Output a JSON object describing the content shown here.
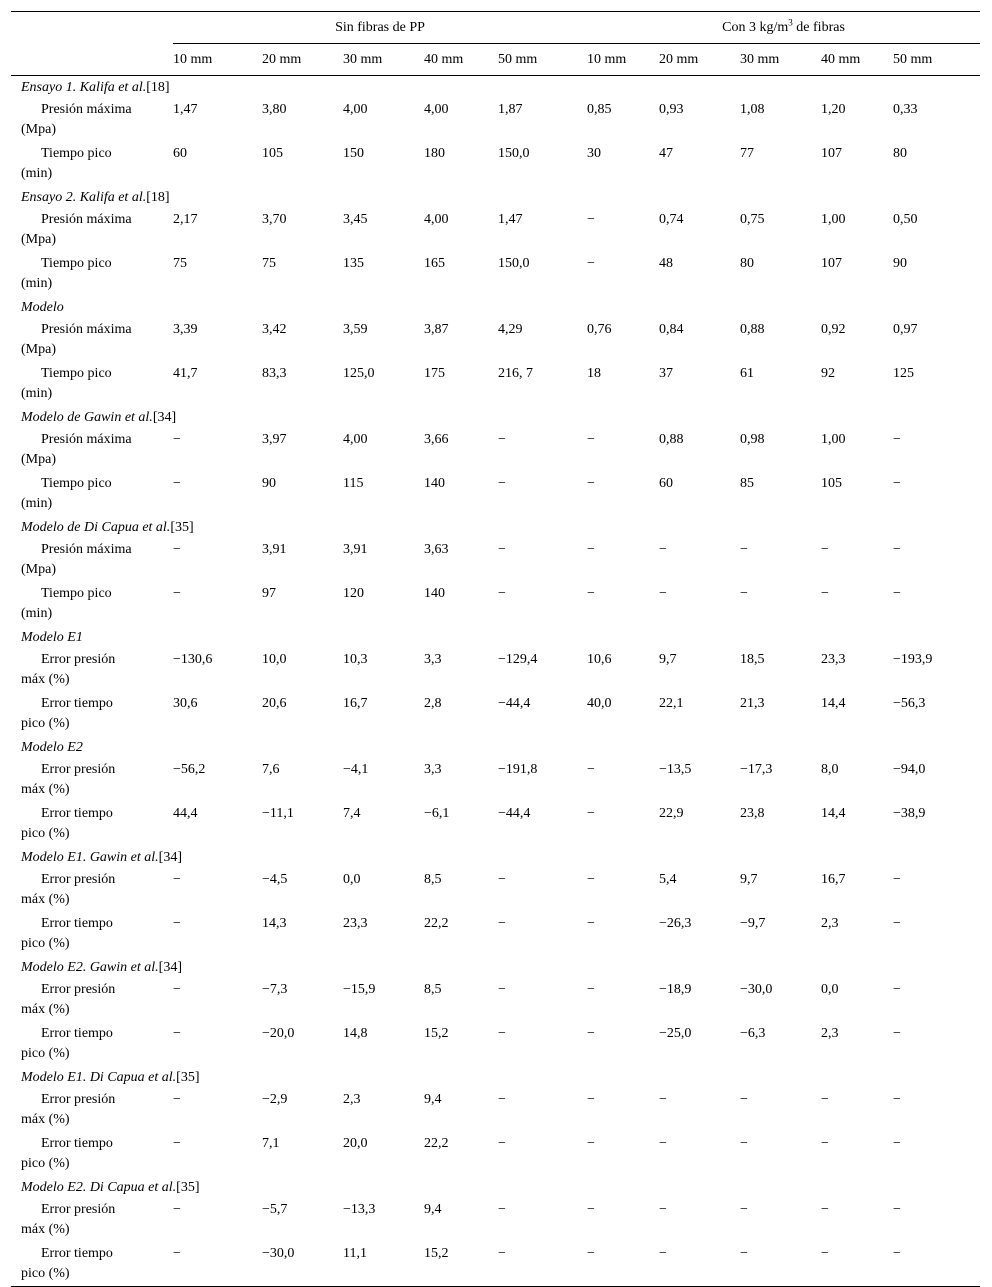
{
  "header": {
    "group_left": "Sin fibras de PP",
    "group_right_prefix": "Con 3 kg/m",
    "group_right_sup": "3",
    "group_right_suffix": " de fibras",
    "columns": [
      "10 mm",
      "20 mm",
      "30 mm",
      "40 mm",
      "50 mm",
      "10 mm",
      "20 mm",
      "30 mm",
      "40 mm",
      "50 mm"
    ]
  },
  "sections": [
    {
      "title": "Ensayo 1. Kalifa et al.",
      "ref": "[18]",
      "rows": [
        {
          "l1": "Presión máxima",
          "l2": "(Mpa)",
          "values": [
            "1,47",
            "3,80",
            "4,00",
            "4,00",
            "1,87",
            "0,85",
            "0,93",
            "1,08",
            "1,20",
            "0,33"
          ]
        },
        {
          "l1": "Tiempo pico",
          "l2": "(min)",
          "values": [
            "60",
            "105",
            "150",
            "180",
            "150,0",
            "30",
            "47",
            "77",
            "107",
            "80"
          ]
        }
      ]
    },
    {
      "title": "Ensayo 2. Kalifa et al.",
      "ref": "[18]",
      "rows": [
        {
          "l1": "Presión máxima",
          "l2": "(Mpa)",
          "values": [
            "2,17",
            "3,70",
            "3,45",
            "4,00",
            "1,47",
            "−",
            "0,74",
            "0,75",
            "1,00",
            "0,50"
          ]
        },
        {
          "l1": "Tiempo pico",
          "l2": "(min)",
          "values": [
            "75",
            "75",
            "135",
            "165",
            "150,0",
            "−",
            "48",
            "80",
            "107",
            "90"
          ]
        }
      ]
    },
    {
      "title": "Modelo",
      "ref": "",
      "rows": [
        {
          "l1": "Presión máxima",
          "l2": "(Mpa)",
          "values": [
            "3,39",
            "3,42",
            "3,59",
            "3,87",
            "4,29",
            "0,76",
            "0,84",
            "0,88",
            "0,92",
            "0,97"
          ]
        },
        {
          "l1": "Tiempo pico",
          "l2": "(min)",
          "values": [
            "41,7",
            "83,3",
            "125,0",
            "175",
            "216, 7",
            "18",
            "37",
            "61",
            "92",
            "125"
          ]
        }
      ]
    },
    {
      "title": "Modelo de Gawin et al.",
      "ref": "[34]",
      "rows": [
        {
          "l1": "Presión máxima",
          "l2": "(Mpa)",
          "values": [
            "−",
            "3,97",
            "4,00",
            "3,66",
            "−",
            "−",
            "0,88",
            "0,98",
            "1,00",
            "−"
          ]
        },
        {
          "l1": "Tiempo pico",
          "l2": "(min)",
          "values": [
            "−",
            "90",
            "115",
            "140",
            "−",
            "−",
            "60",
            "85",
            "105",
            "−"
          ]
        }
      ]
    },
    {
      "title": "Modelo de Di Capua et al.",
      "ref": "[35]",
      "rows": [
        {
          "l1": "Presión máxima",
          "l2": "(Mpa)",
          "values": [
            "−",
            "3,91",
            "3,91",
            "3,63",
            "−",
            "−",
            "−",
            "−",
            "−",
            "−"
          ]
        },
        {
          "l1": "Tiempo pico",
          "l2": "(min)",
          "values": [
            "−",
            "97",
            "120",
            "140",
            "−",
            "−",
            "−",
            "−",
            "−",
            "−"
          ]
        }
      ]
    },
    {
      "title": "Modelo E1",
      "ref": "",
      "rows": [
        {
          "l1": "Error presión",
          "l2": "máx (%)",
          "values": [
            "−130,6",
            "10,0",
            "10,3",
            "3,3",
            "−129,4",
            "10,6",
            "9,7",
            "18,5",
            "23,3",
            "−193,9"
          ]
        },
        {
          "l1": "Error tiempo",
          "l2": "pico (%)",
          "values": [
            "30,6",
            "20,6",
            "16,7",
            "2,8",
            "−44,4",
            "40,0",
            "22,1",
            "21,3",
            "14,4",
            "−56,3"
          ]
        }
      ]
    },
    {
      "title": "Modelo E2",
      "ref": "",
      "rows": [
        {
          "l1": "Error presión",
          "l2": "máx (%)",
          "values": [
            "−56,2",
            "7,6",
            "−4,1",
            "3,3",
            "−191,8",
            "−",
            "−13,5",
            "−17,3",
            "8,0",
            "−94,0"
          ]
        },
        {
          "l1": "Error tiempo",
          "l2": "pico (%)",
          "values": [
            "44,4",
            "−11,1",
            "7,4",
            "−6,1",
            "−44,4",
            "−",
            "22,9",
            "23,8",
            "14,4",
            "−38,9"
          ]
        }
      ]
    },
    {
      "title": "Modelo E1. Gawin et al.",
      "ref": "[34]",
      "rows": [
        {
          "l1": "Error presión",
          "l2": "máx (%)",
          "values": [
            "−",
            "−4,5",
            "0,0",
            "8,5",
            "−",
            "−",
            "5,4",
            "9,7",
            "16,7",
            "−"
          ]
        },
        {
          "l1": "Error tiempo",
          "l2": "pico (%)",
          "values": [
            "−",
            "14,3",
            "23,3",
            "22,2",
            "−",
            "−",
            "−26,3",
            "−9,7",
            "2,3",
            "−"
          ]
        }
      ]
    },
    {
      "title": "Modelo E2. Gawin et al.",
      "ref": "[34]",
      "rows": [
        {
          "l1": "Error presión",
          "l2": "máx (%)",
          "values": [
            "−",
            "−7,3",
            "−15,9",
            "8,5",
            "−",
            "−",
            "−18,9",
            "−30,0",
            "0,0",
            "−"
          ]
        },
        {
          "l1": "Error tiempo",
          "l2": "pico (%)",
          "values": [
            "−",
            "−20,0",
            "14,8",
            "15,2",
            "−",
            "−",
            "−25,0",
            "−6,3",
            "2,3",
            "−"
          ]
        }
      ]
    },
    {
      "title": "Modelo E1. Di Capua et al.",
      "ref": "[35]",
      "rows": [
        {
          "l1": "Error presión",
          "l2": "máx (%)",
          "values": [
            "−",
            "−2,9",
            "2,3",
            "9,4",
            "−",
            "−",
            "−",
            "−",
            "−",
            "−"
          ]
        },
        {
          "l1": "Error tiempo",
          "l2": "pico (%)",
          "values": [
            "−",
            "7,1",
            "20,0",
            "22,2",
            "−",
            "−",
            "−",
            "−",
            "−",
            "−"
          ]
        }
      ]
    },
    {
      "title": "Modelo E2. Di Capua et al.",
      "ref": "[35]",
      "rows": [
        {
          "l1": "Error presión",
          "l2": "máx (%)",
          "values": [
            "−",
            "−5,7",
            "−13,3",
            "9,4",
            "−",
            "−",
            "−",
            "−",
            "−",
            "−"
          ]
        },
        {
          "l1": "Error tiempo",
          "l2": "pico (%)",
          "values": [
            "−",
            "−30,0",
            "11,1",
            "15,2",
            "−",
            "−",
            "−",
            "−",
            "−",
            "−"
          ]
        }
      ]
    }
  ]
}
